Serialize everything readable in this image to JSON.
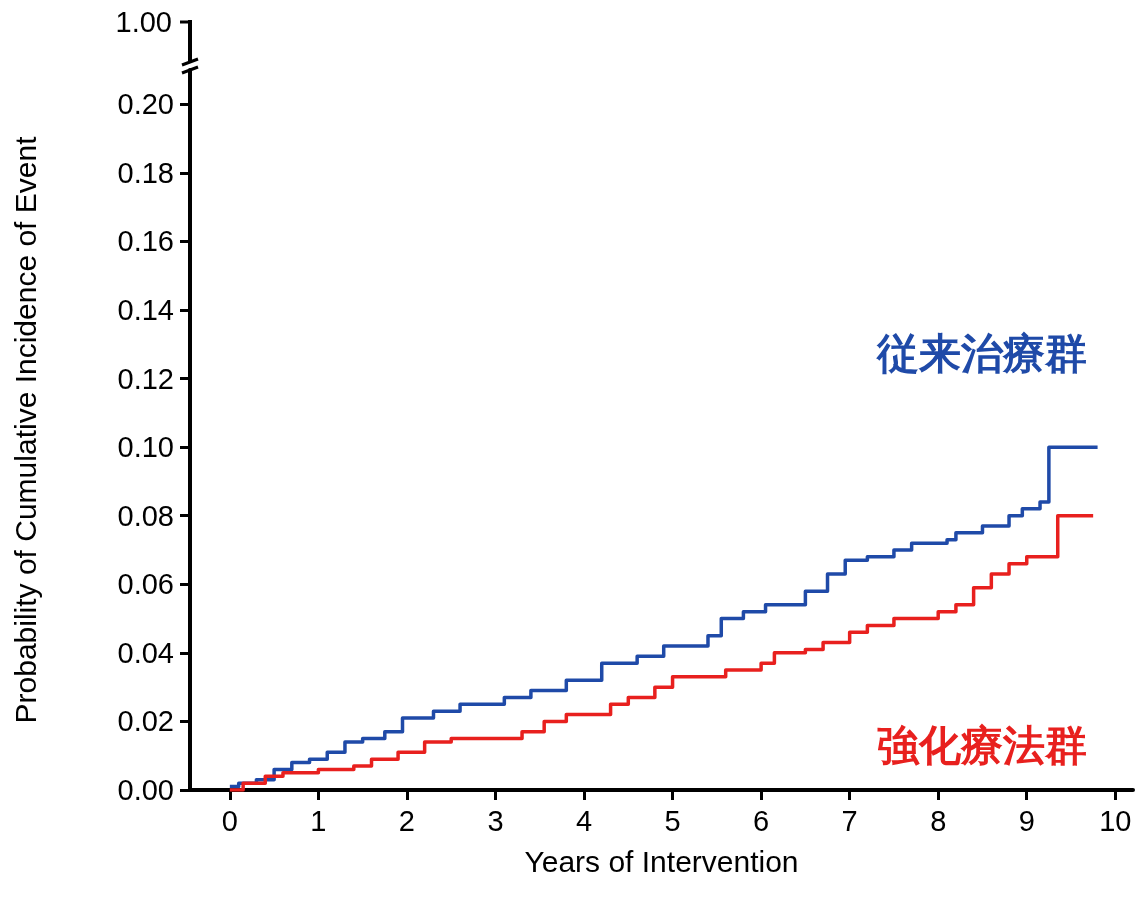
{
  "chart_data": [
    {
      "type": "other",
      "annotations": [
        "1.00"
      ]
    },
    {
      "type": "step",
      "xlabel": "Years of Intervention",
      "ylabel": "Probability of Cumulative Incidence of Event",
      "xlim": [
        -0.45,
        10.2
      ],
      "xticks": [
        0,
        1,
        2,
        3,
        4,
        5,
        6,
        7,
        8,
        9,
        10
      ],
      "ylim": [
        0,
        0.21
      ],
      "yticks": [
        {
          "value": 0,
          "label": "0.00"
        },
        {
          "value": 0.02,
          "label": "0.02"
        },
        {
          "value": 0.04,
          "label": "0.04"
        },
        {
          "value": 0.06,
          "label": "0.06"
        },
        {
          "value": 0.08,
          "label": "0.08"
        },
        {
          "value": 0.1,
          "label": "0.10"
        },
        {
          "value": 0.12,
          "label": "0.12"
        },
        {
          "value": 0.14,
          "label": "0.14"
        },
        {
          "value": 0.16,
          "label": "0.16"
        },
        {
          "value": 0.18,
          "label": "0.18"
        },
        {
          "value": 0.2,
          "label": "0.20"
        }
      ],
      "grid": false,
      "legend": false,
      "line_style": "solid",
      "series": [
        {
          "name": "従来治療群",
          "color": "#1f4aa8",
          "x": [
            0,
            0.1,
            0.3,
            0.5,
            0.7,
            0.9,
            1.1,
            1.3,
            1.5,
            1.75,
            1.95,
            2.3,
            2.6,
            3.1,
            3.4,
            3.8,
            4.2,
            4.6,
            4.9,
            5.4,
            5.55,
            5.8,
            6.05,
            6.5,
            6.75,
            6.95,
            7.2,
            7.5,
            7.7,
            8.1,
            8.2,
            8.5,
            8.8,
            8.95,
            9.15,
            9.25,
            9.8
          ],
          "values": [
            0.001,
            0.002,
            0.003,
            0.006,
            0.008,
            0.009,
            0.011,
            0.014,
            0.015,
            0.017,
            0.021,
            0.023,
            0.025,
            0.027,
            0.029,
            0.032,
            0.037,
            0.039,
            0.042,
            0.045,
            0.05,
            0.052,
            0.054,
            0.058,
            0.063,
            0.067,
            0.068,
            0.07,
            0.072,
            0.073,
            0.075,
            0.077,
            0.08,
            0.082,
            0.084,
            0.1,
            0.1
          ]
        },
        {
          "name": "強化療法群",
          "color": "#e8201e",
          "x": [
            0,
            0.15,
            0.4,
            0.6,
            1.0,
            1.4,
            1.6,
            1.9,
            2.2,
            2.5,
            3.3,
            3.55,
            3.8,
            4.3,
            4.5,
            4.8,
            5.0,
            5.6,
            6.0,
            6.15,
            6.5,
            6.7,
            7.0,
            7.2,
            7.5,
            8.0,
            8.2,
            8.4,
            8.6,
            8.8,
            9.0,
            9.35,
            9.75
          ],
          "values": [
            0,
            0.002,
            0.004,
            0.005,
            0.006,
            0.007,
            0.009,
            0.011,
            0.014,
            0.015,
            0.017,
            0.02,
            0.022,
            0.025,
            0.027,
            0.03,
            0.033,
            0.035,
            0.037,
            0.04,
            0.041,
            0.043,
            0.046,
            0.048,
            0.05,
            0.052,
            0.054,
            0.059,
            0.063,
            0.066,
            0.068,
            0.08,
            0.08
          ]
        }
      ]
    }
  ]
}
